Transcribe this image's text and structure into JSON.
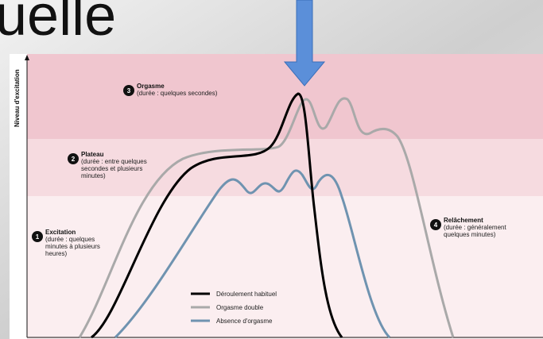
{
  "slide": {
    "title_fragment": "uelle"
  },
  "diagram": {
    "y_axis_label": "Niveau d'excitation",
    "phases": [
      {
        "number": "1",
        "name": "Excitation",
        "detail": [
          "(durée : quelques",
          "minutes à plusieurs",
          "heures)"
        ]
      },
      {
        "number": "2",
        "name": "Plateau",
        "detail": [
          "(durée : entre quelques",
          "secondes et plusieurs",
          "minutes)"
        ]
      },
      {
        "number": "3",
        "name": "Orgasme",
        "detail": [
          "(durée : quelques secondes)"
        ]
      },
      {
        "number": "4",
        "name": "Relâchement",
        "detail": [
          "(durée : généralement",
          "quelques minutes)"
        ]
      }
    ],
    "legend": [
      "Déroulement habituel",
      "Orgasme double",
      "Absence d'orgasme"
    ]
  }
}
